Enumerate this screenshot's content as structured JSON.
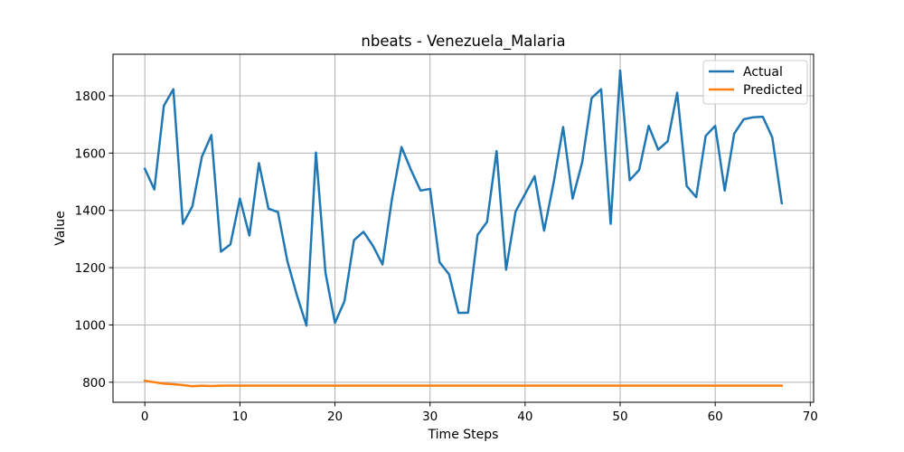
{
  "chart_data": {
    "type": "line",
    "title": "nbeats - Venezuela_Malaria",
    "xlabel": "Time Steps",
    "ylabel": "Value",
    "xlim": [
      -3.35,
      70.35
    ],
    "ylim": [
      730,
      1945
    ],
    "xticks": [
      0,
      10,
      20,
      30,
      40,
      50,
      60,
      70
    ],
    "yticks": [
      800,
      1000,
      1200,
      1400,
      1600,
      1800
    ],
    "grid": true,
    "legend_position": "top-right",
    "x": [
      0,
      1,
      2,
      3,
      4,
      5,
      6,
      7,
      8,
      9,
      10,
      11,
      12,
      13,
      14,
      15,
      16,
      17,
      18,
      19,
      20,
      21,
      22,
      23,
      24,
      25,
      26,
      27,
      28,
      29,
      30,
      31,
      32,
      33,
      34,
      35,
      36,
      37,
      38,
      39,
      40,
      41,
      42,
      43,
      44,
      45,
      46,
      47,
      48,
      49,
      50,
      51,
      52,
      53,
      54,
      55,
      56,
      57,
      58,
      59,
      60,
      61,
      62,
      63,
      64,
      65,
      66,
      67
    ],
    "series": [
      {
        "name": "Actual",
        "color": "#1f77b4",
        "values": [
          1545,
          1473,
          1765,
          1823,
          1353,
          1414,
          1587,
          1663,
          1256,
          1281,
          1441,
          1312,
          1565,
          1406,
          1394,
          1222,
          1103,
          998,
          1602,
          1183,
          1007,
          1083,
          1296,
          1325,
          1276,
          1211,
          1441,
          1621,
          1541,
          1469,
          1475,
          1219,
          1177,
          1042,
          1043,
          1314,
          1360,
          1607,
          1193,
          1396,
          1457,
          1519,
          1329,
          1496,
          1691,
          1441,
          1567,
          1792,
          1823,
          1353,
          1888,
          1505,
          1541,
          1695,
          1612,
          1641,
          1811,
          1485,
          1446,
          1660,
          1695,
          1469,
          1668,
          1718,
          1725,
          1727,
          1655,
          1425
        ]
      },
      {
        "name": "Predicted",
        "color": "#ff7f0e",
        "values": [
          805,
          800,
          795,
          793,
          790,
          786,
          788,
          787,
          788,
          788,
          788,
          788,
          788,
          788,
          788,
          788,
          788,
          788,
          788,
          788,
          788,
          788,
          788,
          788,
          788,
          788,
          788,
          788,
          788,
          788,
          788,
          788,
          788,
          788,
          788,
          788,
          788,
          788,
          788,
          788,
          788,
          788,
          788,
          788,
          788,
          788,
          788,
          788,
          788,
          788,
          788,
          788,
          788,
          788,
          788,
          788,
          788,
          788,
          788,
          788,
          788,
          788,
          788,
          788,
          788,
          788,
          788,
          788
        ]
      }
    ]
  }
}
